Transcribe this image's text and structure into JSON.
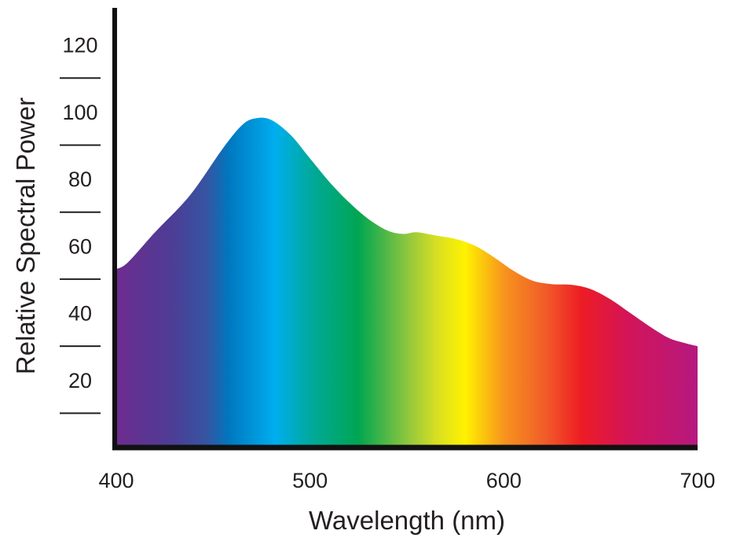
{
  "chart_data": {
    "type": "area",
    "title": "",
    "xlabel": "Wavelength (nm)",
    "ylabel": "Relative Spectral Power",
    "xlim": [
      400,
      700
    ],
    "ylim": [
      0,
      130
    ],
    "x_ticks": [
      400,
      500,
      600,
      700
    ],
    "y_ticks": [
      20,
      40,
      60,
      80,
      100,
      120
    ],
    "y_minor_ticks": [
      10,
      30,
      50,
      70,
      90,
      110
    ],
    "grid": false,
    "legend": "none",
    "fill": "visible-spectrum gradient (violet to magenta)",
    "series": [
      {
        "x": [
          400,
          406,
          420,
          438,
          455,
          465,
          472,
          480,
          490,
          500,
          510,
          520,
          530,
          540,
          548,
          555,
          565,
          575,
          585,
          595,
          605,
          615,
          625,
          635,
          645,
          655,
          665,
          675,
          685,
          693,
          700
        ],
        "y": [
          53,
          55,
          64,
          75,
          89,
          96,
          98,
          97.5,
          93,
          86,
          79,
          73,
          68,
          64.5,
          63.5,
          64,
          63,
          62,
          60,
          56.5,
          52.5,
          49.5,
          48.5,
          48.3,
          47,
          44,
          40,
          36,
          32.5,
          31,
          30
        ]
      }
    ],
    "spectrum_colors": [
      {
        "x": 400,
        "color": "#6d2c8f"
      },
      {
        "x": 428,
        "color": "#4e3c95"
      },
      {
        "x": 447,
        "color": "#3555a2"
      },
      {
        "x": 458,
        "color": "#0077bf"
      },
      {
        "x": 482,
        "color": "#00aeef"
      },
      {
        "x": 500,
        "color": "#00a99d"
      },
      {
        "x": 525,
        "color": "#00a651"
      },
      {
        "x": 550,
        "color": "#8dc63f"
      },
      {
        "x": 565,
        "color": "#d7df23"
      },
      {
        "x": 580,
        "color": "#fff200"
      },
      {
        "x": 600,
        "color": "#f7941d"
      },
      {
        "x": 622,
        "color": "#f15a29"
      },
      {
        "x": 640,
        "color": "#ed1c24"
      },
      {
        "x": 665,
        "color": "#d2145a"
      },
      {
        "x": 700,
        "color": "#b5197f"
      }
    ],
    "axis_color": "#111111"
  }
}
